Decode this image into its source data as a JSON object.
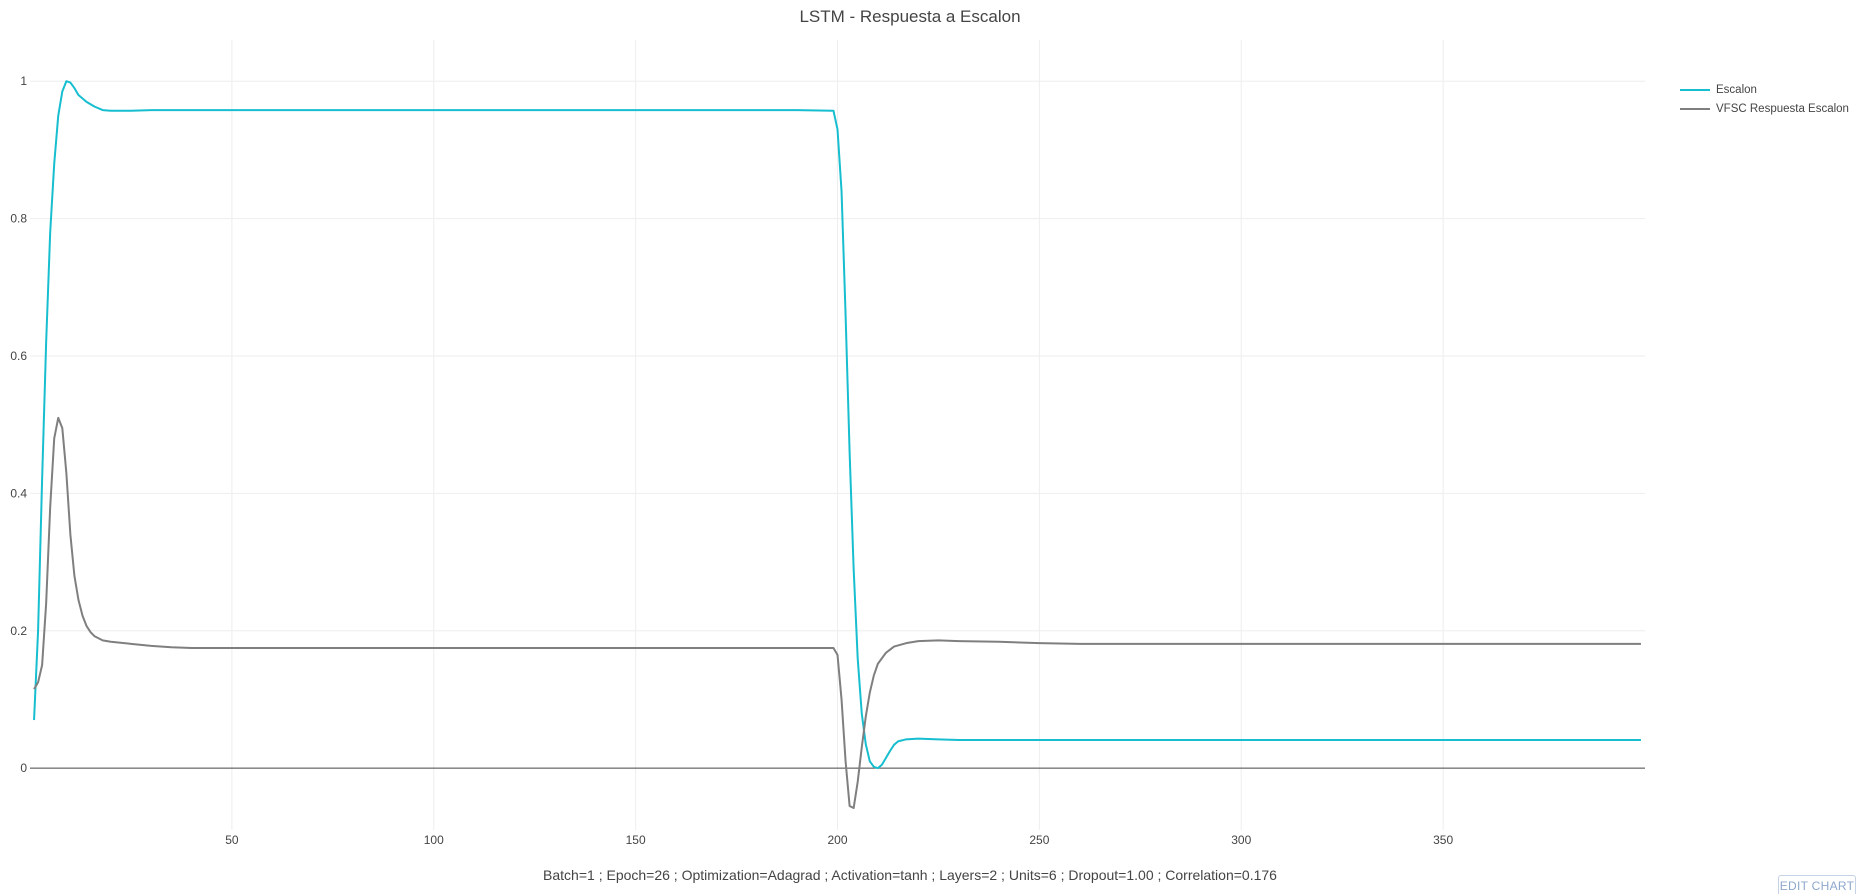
{
  "chart_data": {
    "type": "line",
    "title": "LSTM - Respuesta a Escalon",
    "xlabel": "Batch=1 ; Epoch=26 ; Optimization=Adagrad ; Activation=tanh ; Layers=2 ; Units=6 ; Dropout=1.00 ; Correlation=0.176",
    "ylabel": "",
    "xlim": [
      0,
      400
    ],
    "ylim": [
      -0.09,
      1.06
    ],
    "x_ticks": [
      50,
      100,
      150,
      200,
      250,
      300,
      350
    ],
    "y_ticks": [
      0,
      0.2,
      0.4,
      0.6,
      0.8,
      1
    ],
    "x_tick_labels": [
      "50",
      "100",
      "150",
      "200",
      "250",
      "300",
      "350"
    ],
    "y_tick_labels": [
      "0",
      "0.2",
      "0.4",
      "0.6",
      "0.8",
      "1"
    ],
    "grid": true,
    "legend_position": "top-right",
    "series": [
      {
        "name": "Escalon",
        "color": "#17becf",
        "points": [
          [
            1,
            0.07
          ],
          [
            2,
            0.2
          ],
          [
            3,
            0.42
          ],
          [
            4,
            0.62
          ],
          [
            5,
            0.78
          ],
          [
            6,
            0.88
          ],
          [
            7,
            0.95
          ],
          [
            8,
            0.985
          ],
          [
            9,
            1.0
          ],
          [
            10,
            0.998
          ],
          [
            11,
            0.99
          ],
          [
            12,
            0.98
          ],
          [
            14,
            0.97
          ],
          [
            16,
            0.963
          ],
          [
            18,
            0.958
          ],
          [
            20,
            0.957
          ],
          [
            25,
            0.957
          ],
          [
            30,
            0.958
          ],
          [
            40,
            0.958
          ],
          [
            100,
            0.958
          ],
          [
            150,
            0.958
          ],
          [
            190,
            0.958
          ],
          [
            199,
            0.957
          ],
          [
            200,
            0.93
          ],
          [
            201,
            0.84
          ],
          [
            202,
            0.66
          ],
          [
            203,
            0.46
          ],
          [
            204,
            0.29
          ],
          [
            205,
            0.16
          ],
          [
            206,
            0.08
          ],
          [
            207,
            0.035
          ],
          [
            208,
            0.01
          ],
          [
            209,
            0.002
          ],
          [
            210,
            0.0
          ],
          [
            211,
            0.005
          ],
          [
            212,
            0.015
          ],
          [
            213,
            0.025
          ],
          [
            214,
            0.034
          ],
          [
            215,
            0.039
          ],
          [
            217,
            0.042
          ],
          [
            220,
            0.043
          ],
          [
            225,
            0.042
          ],
          [
            230,
            0.041
          ],
          [
            250,
            0.041
          ],
          [
            300,
            0.041
          ],
          [
            350,
            0.041
          ],
          [
            399,
            0.041
          ]
        ]
      },
      {
        "name": "VFSC Respuesta Escalon",
        "color": "#7f7f7f",
        "points": [
          [
            1,
            0.115
          ],
          [
            2,
            0.125
          ],
          [
            3,
            0.15
          ],
          [
            4,
            0.24
          ],
          [
            5,
            0.38
          ],
          [
            6,
            0.48
          ],
          [
            7,
            0.51
          ],
          [
            8,
            0.495
          ],
          [
            9,
            0.43
          ],
          [
            10,
            0.34
          ],
          [
            11,
            0.28
          ],
          [
            12,
            0.245
          ],
          [
            13,
            0.222
          ],
          [
            14,
            0.207
          ],
          [
            15,
            0.198
          ],
          [
            16,
            0.192
          ],
          [
            18,
            0.186
          ],
          [
            20,
            0.184
          ],
          [
            25,
            0.181
          ],
          [
            30,
            0.178
          ],
          [
            35,
            0.176
          ],
          [
            40,
            0.175
          ],
          [
            50,
            0.175
          ],
          [
            100,
            0.175
          ],
          [
            150,
            0.175
          ],
          [
            199,
            0.175
          ],
          [
            200,
            0.165
          ],
          [
            201,
            0.1
          ],
          [
            202,
            0.01
          ],
          [
            203,
            -0.055
          ],
          [
            204,
            -0.058
          ],
          [
            205,
            -0.02
          ],
          [
            206,
            0.03
          ],
          [
            207,
            0.075
          ],
          [
            208,
            0.11
          ],
          [
            209,
            0.135
          ],
          [
            210,
            0.152
          ],
          [
            212,
            0.168
          ],
          [
            214,
            0.177
          ],
          [
            217,
            0.182
          ],
          [
            220,
            0.185
          ],
          [
            225,
            0.186
          ],
          [
            230,
            0.185
          ],
          [
            240,
            0.184
          ],
          [
            250,
            0.182
          ],
          [
            260,
            0.181
          ],
          [
            300,
            0.181
          ],
          [
            350,
            0.181
          ],
          [
            399,
            0.181
          ]
        ]
      }
    ]
  },
  "ui": {
    "edit_chart_label": "EDIT CHART"
  }
}
